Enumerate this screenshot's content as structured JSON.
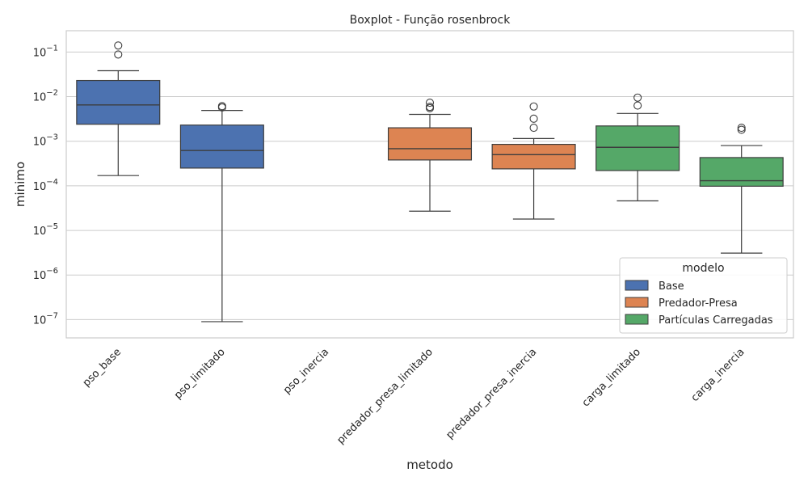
{
  "chart_data": {
    "type": "boxplot",
    "title": "Boxplot - Função rosenbrock",
    "xlabel": "metodo",
    "ylabel": "minimo",
    "yscale": "log",
    "ylim": [
      4e-08,
      0.3
    ],
    "y_ticks": [
      {
        "value": 1e-07,
        "base": "10",
        "exp": "−7"
      },
      {
        "value": 1e-06,
        "base": "10",
        "exp": "−6"
      },
      {
        "value": 1e-05,
        "base": "10",
        "exp": "−5"
      },
      {
        "value": 0.0001,
        "base": "10",
        "exp": "−4"
      },
      {
        "value": 0.001,
        "base": "10",
        "exp": "−3"
      },
      {
        "value": 0.01,
        "base": "10",
        "exp": "−2"
      },
      {
        "value": 0.1,
        "base": "10",
        "exp": "−1"
      }
    ],
    "grid": true,
    "categories": [
      "pso_base",
      "pso_limitado",
      "pso_inercia",
      "predador_presa_limitado",
      "predador_presa_inercia",
      "carga_limitado",
      "carga_inercia"
    ],
    "legend": {
      "title": "modelo",
      "position": "lower-right",
      "entries": [
        {
          "label": "Base",
          "color": "#4c72b0"
        },
        {
          "label": "Predador-Presa",
          "color": "#dd8452"
        },
        {
          "label": "Partículas Carregadas",
          "color": "#55a868"
        }
      ]
    },
    "boxes": [
      {
        "category": "pso_base",
        "modelo": "Base",
        "whislo": 0.00017,
        "q1": 0.0024,
        "median": 0.0065,
        "q3": 0.023,
        "whishi": 0.038,
        "fliers": [
          0.088,
          0.14
        ]
      },
      {
        "category": "pso_limitado",
        "modelo": "Base",
        "whislo": 9e-08,
        "q1": 0.00025,
        "median": 0.00062,
        "q3": 0.0023,
        "whishi": 0.0049,
        "fliers": [
          0.0057,
          0.0061
        ]
      },
      {
        "category": "predador_presa_limitado",
        "modelo": "Predador-Presa",
        "whislo": 2.7e-05,
        "q1": 0.00038,
        "median": 0.00068,
        "q3": 0.002,
        "whishi": 0.004,
        "fliers": [
          0.0055,
          0.0059,
          0.0073
        ]
      },
      {
        "category": "predador_presa_inercia",
        "modelo": "Predador-Presa",
        "whislo": 1.8e-05,
        "q1": 0.00024,
        "median": 0.0005,
        "q3": 0.00085,
        "whishi": 0.00115,
        "fliers": [
          0.002,
          0.0032,
          0.006
        ]
      },
      {
        "category": "carga_limitado",
        "modelo": "Partículas Carregadas",
        "whislo": 4.6e-05,
        "q1": 0.00022,
        "median": 0.00073,
        "q3": 0.0022,
        "whishi": 0.0042,
        "fliers": [
          0.0063,
          0.0095
        ]
      },
      {
        "category": "carga_inercia",
        "modelo": "Partículas Carregadas",
        "whislo": 3.1e-06,
        "q1": 9.8e-05,
        "median": 0.00013,
        "q3": 0.00043,
        "whishi": 0.0008,
        "fliers": [
          0.0018,
          0.002
        ]
      }
    ]
  }
}
